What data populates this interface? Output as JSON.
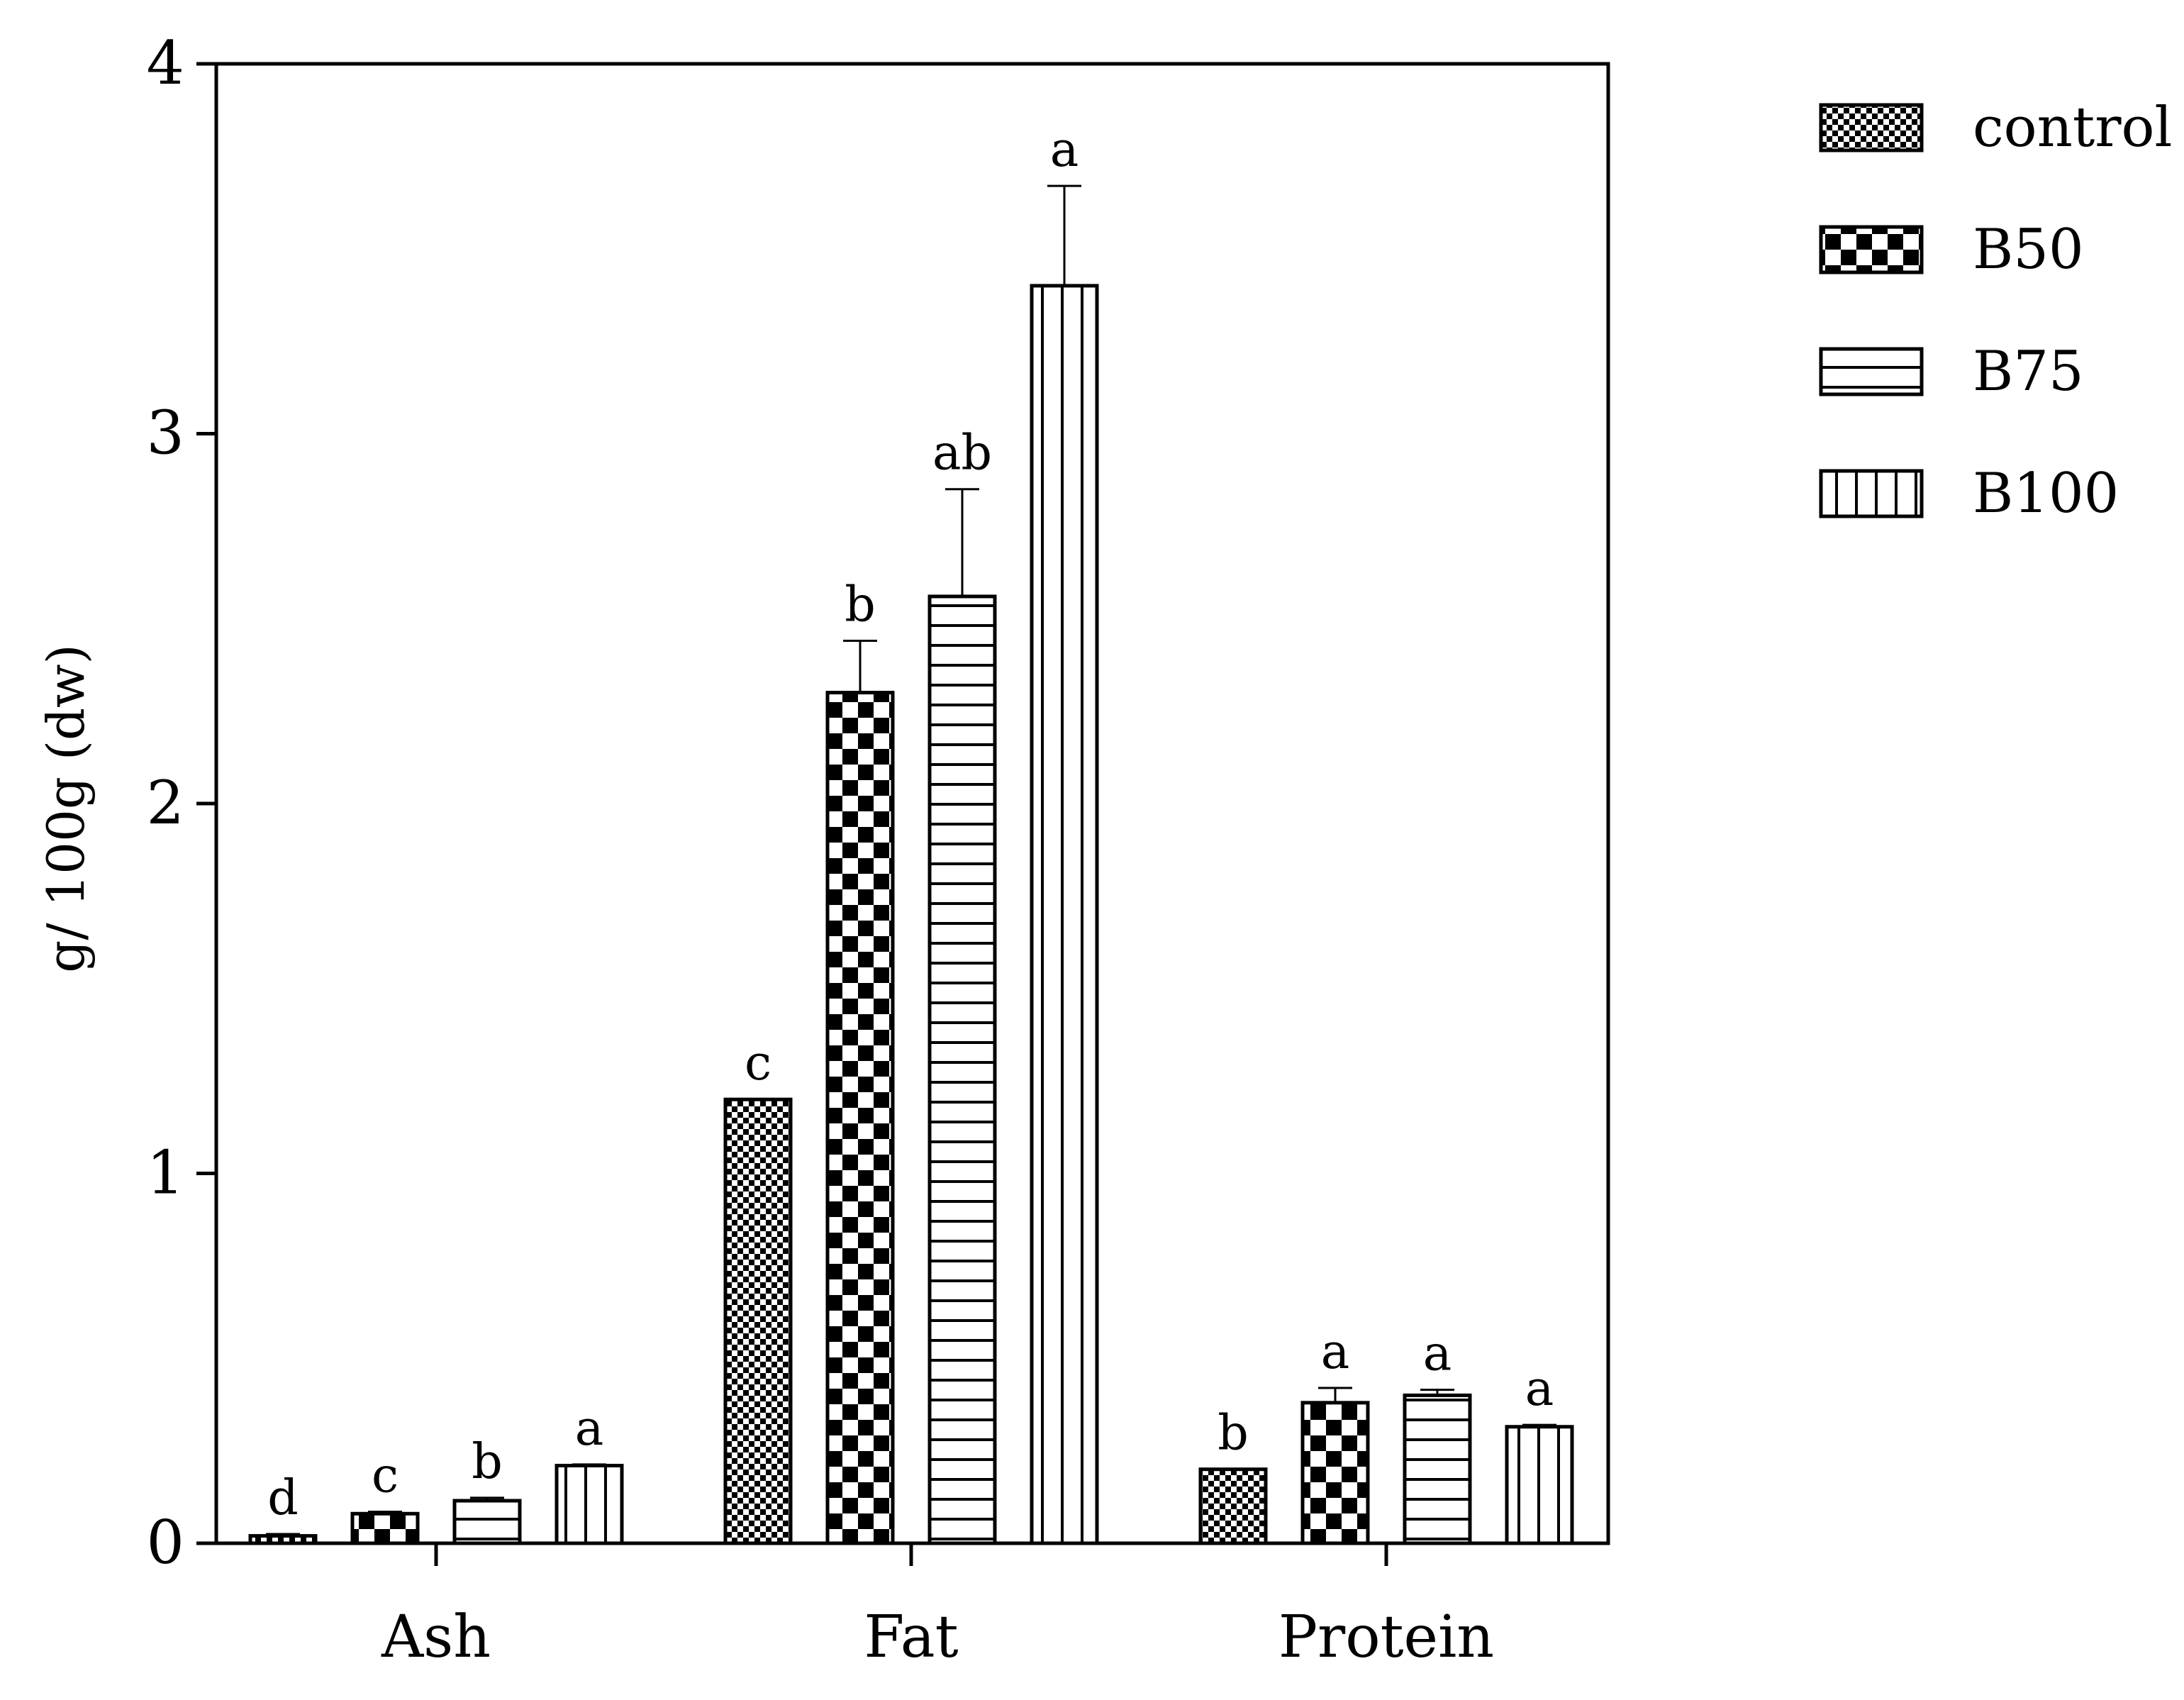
{
  "chart_data": {
    "type": "bar",
    "ylabel": "g/ 100g (dw)",
    "ylim": [
      0,
      4
    ],
    "yticks": [
      "0",
      "1",
      "2",
      "3",
      "4"
    ],
    "categories": [
      "Ash",
      "Fat",
      "Protein"
    ],
    "legend_position": "right",
    "grid": false,
    "series": [
      {
        "name": "control",
        "pattern": "fine-checker",
        "values": [
          0.02,
          1.2,
          0.2
        ],
        "errors": [
          0.005,
          0.0,
          0.0
        ],
        "labels": [
          "d",
          "c",
          "b"
        ]
      },
      {
        "name": "B50",
        "pattern": "checker",
        "values": [
          0.08,
          2.3,
          0.38
        ],
        "errors": [
          0.005,
          0.14,
          0.04
        ],
        "labels": [
          "c",
          "b",
          "a"
        ]
      },
      {
        "name": "B75",
        "pattern": "horizontal-lines",
        "values": [
          0.115,
          2.56,
          0.4
        ],
        "errors": [
          0.008,
          0.29,
          0.015
        ],
        "labels": [
          "b",
          "ab",
          "a"
        ]
      },
      {
        "name": "B100",
        "pattern": "vertical-lines",
        "values": [
          0.21,
          3.4,
          0.315
        ],
        "errors": [
          0.003,
          0.27,
          0.005
        ],
        "labels": [
          "a",
          "a",
          "a"
        ]
      }
    ]
  }
}
